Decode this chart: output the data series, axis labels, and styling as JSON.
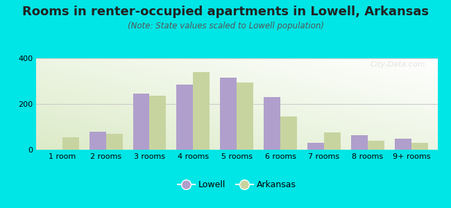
{
  "title": "Rooms in renter-occupied apartments in Lowell, Arkansas",
  "subtitle": "(Note: State values scaled to Lowell population)",
  "categories": [
    "1 room",
    "2 rooms",
    "3 rooms",
    "4 rooms",
    "5 rooms",
    "6 rooms",
    "7 rooms",
    "8 rooms",
    "9+ rooms"
  ],
  "lowell_values": [
    0,
    80,
    245,
    285,
    315,
    230,
    30,
    65,
    50
  ],
  "arkansas_values": [
    55,
    70,
    235,
    340,
    295,
    145,
    75,
    40,
    30
  ],
  "lowell_color": "#b09fcc",
  "arkansas_color": "#c8d4a0",
  "ylim": [
    0,
    400
  ],
  "yticks": [
    0,
    200,
    400
  ],
  "background_outer": "#00e5e5",
  "bar_width": 0.38,
  "title_fontsize": 13,
  "subtitle_fontsize": 8.5,
  "legend_fontsize": 9,
  "tick_fontsize": 8,
  "grid_color": "#cccccc",
  "watermark_text": "City-Data.com",
  "watermark_alpha": 0.3
}
